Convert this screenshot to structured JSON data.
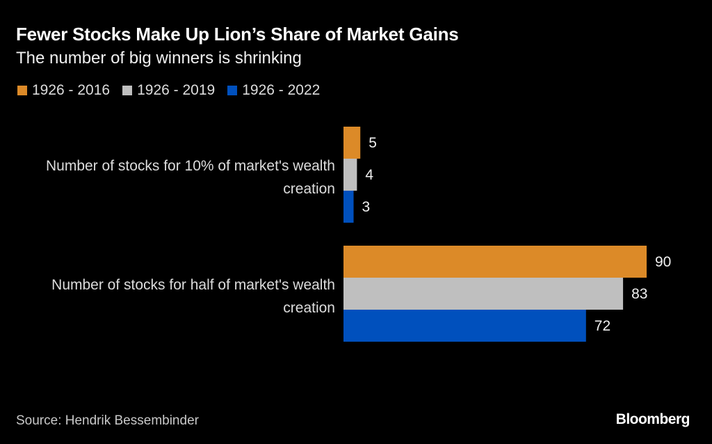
{
  "chart_data": {
    "type": "bar",
    "orientation": "horizontal",
    "title": "Fewer Stocks Make Up Lion’s Share of Market Gains",
    "subtitle": "The number of big winners is shrinking",
    "categories": [
      "Number of stocks for 10% of market's wealth creation",
      "Number of stocks for half of market's wealth creation"
    ],
    "series": [
      {
        "name": "1926 - 2016",
        "color": "#dc8a28",
        "values": [
          5,
          90
        ]
      },
      {
        "name": "1926 - 2019",
        "color": "#bfbfbf",
        "values": [
          4,
          83
        ]
      },
      {
        "name": "1926 - 2022",
        "color": "#0050bd",
        "values": [
          3,
          72
        ]
      }
    ],
    "xlabel": "",
    "ylabel": "",
    "xlim": [
      0,
      90
    ],
    "grid": false,
    "legend_position": "top-left",
    "data_labels": true
  },
  "labels": {
    "category_1": "Number of stocks for 10% of market's wealth creation",
    "category_2": "Number of stocks for half of market's wealth creation"
  },
  "footer": {
    "source": "Source: Hendrik Bessembinder",
    "brand": "Bloomberg"
  }
}
